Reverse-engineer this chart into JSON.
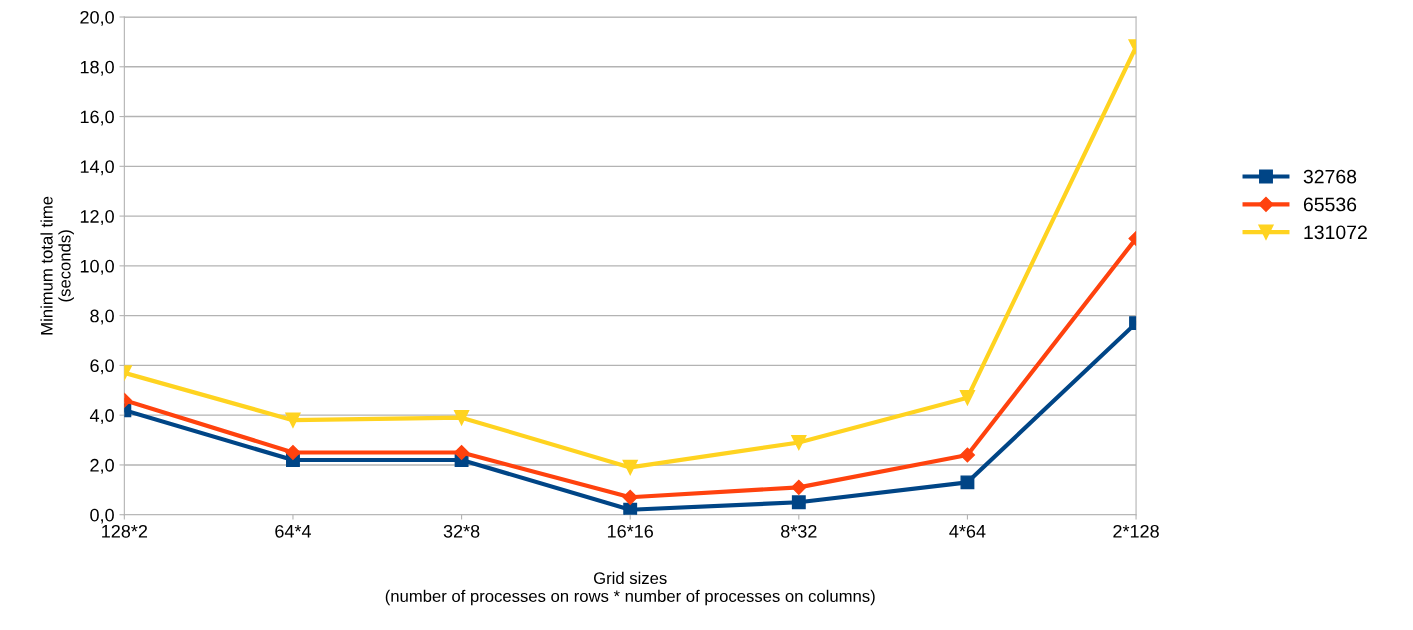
{
  "chart_data": {
    "type": "line",
    "xlabel": "Grid sizes\n(number of processes on rows * number of processes on columns)",
    "ylabel": "Minimum total time\n(seconds)",
    "categories": [
      "128*2",
      "64*4",
      "32*8",
      "16*16",
      "8*32",
      "4*64",
      "2*128"
    ],
    "series": [
      {
        "name": "32768",
        "color": "#004586",
        "marker": "square",
        "values": [
          4.2,
          2.2,
          2.2,
          0.2,
          0.5,
          1.3,
          7.7
        ]
      },
      {
        "name": "65536",
        "color": "#ff420e",
        "marker": "diamond",
        "values": [
          4.6,
          2.5,
          2.5,
          0.7,
          1.1,
          2.4,
          11.1
        ]
      },
      {
        "name": "131072",
        "color": "#ffd320",
        "marker": "triangle_down",
        "values": [
          5.7,
          3.8,
          3.9,
          1.9,
          2.9,
          4.7,
          18.8
        ]
      }
    ],
    "ylim": [
      0,
      20
    ],
    "yticks": [
      {
        "value": 0,
        "label": "0,0"
      },
      {
        "value": 2,
        "label": "2,0"
      },
      {
        "value": 4,
        "label": "4,0"
      },
      {
        "value": 6,
        "label": "6,0"
      },
      {
        "value": 8,
        "label": "8,0"
      },
      {
        "value": 10,
        "label": "10,0"
      },
      {
        "value": 12,
        "label": "12,0"
      },
      {
        "value": 14,
        "label": "14,0"
      },
      {
        "value": 16,
        "label": "16,0"
      },
      {
        "value": 18,
        "label": "18,0"
      },
      {
        "value": 20,
        "label": "20,0"
      }
    ],
    "grid": "y",
    "legend": "right",
    "line_style": "solid"
  }
}
